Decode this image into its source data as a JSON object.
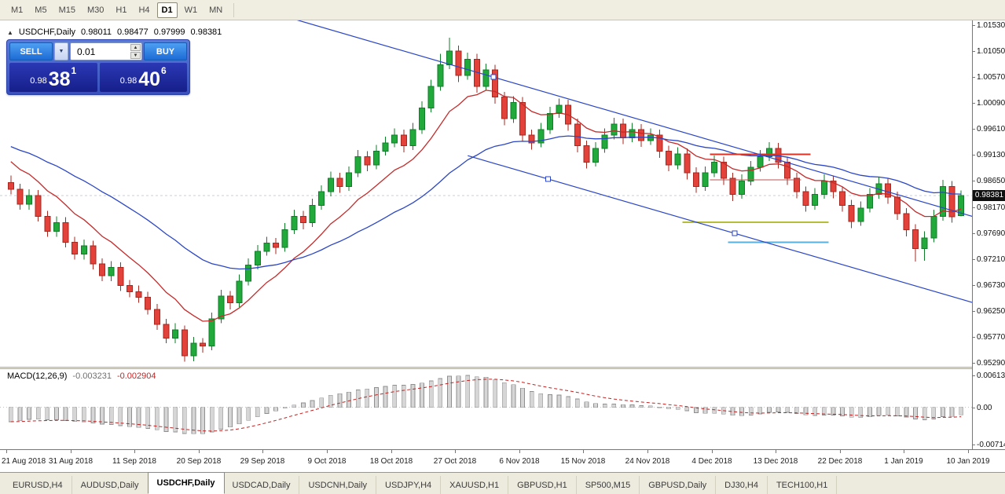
{
  "toolbar": {
    "timeframes": [
      "M1",
      "M5",
      "M15",
      "M30",
      "H1",
      "H4",
      "D1",
      "W1",
      "MN"
    ],
    "active_timeframe": "D1"
  },
  "chart": {
    "symbol_period": "USDCHF,Daily",
    "open": "0.98011",
    "high": "0.98477",
    "low": "0.97999",
    "close": "0.98381"
  },
  "trade_panel": {
    "sell_label": "SELL",
    "buy_label": "BUY",
    "volume": "0.01",
    "bid_prefix": "0.98",
    "bid_pips": "38",
    "bid_point": "1",
    "ask_prefix": "0.98",
    "ask_pips": "40",
    "ask_point": "6"
  },
  "price_axis": {
    "current": "0.98381"
  },
  "macd_panel": {
    "label": "MACD(12,26,9)",
    "value_main": "-0.003231",
    "value_signal": "-0.002904"
  },
  "tabs": {
    "items": [
      "EURUSD,H4",
      "AUDUSD,Daily",
      "USDCHF,Daily",
      "USDCAD,Daily",
      "USDCNH,Daily",
      "USDJPY,H4",
      "XAUUSD,H1",
      "GBPUSD,H1",
      "SP500,M15",
      "GBPUSD,Daily",
      "DJ30,H4",
      "TECH100,H1"
    ],
    "active": "USDCHF,Daily"
  },
  "chart_data": {
    "type": "candlestick",
    "title": "USDCHF,Daily",
    "price_top": 1.0153,
    "price_bottom": 0.9529,
    "price_axis_ticks": [
      "1.01530",
      "1.01050",
      "1.00570",
      "1.00090",
      "0.99610",
      "0.99130",
      "0.98650",
      "0.98170",
      "0.97690",
      "0.97210",
      "0.96730",
      "0.96250",
      "0.95770",
      "0.95290"
    ],
    "current_price": 0.98381,
    "date_ticks": [
      "21 Aug 2018",
      "31 Aug 2018",
      "11 Sep 2018",
      "20 Sep 2018",
      "29 Sep 2018",
      "9 Oct 2018",
      "18 Oct 2018",
      "27 Oct 2018",
      "6 Nov 2018",
      "15 Nov 2018",
      "24 Nov 2018",
      "4 Dec 2018",
      "13 Dec 2018",
      "22 Dec 2018",
      "1 Jan 2019",
      "10 Jan 2019"
    ],
    "ohlc": [
      [
        0.9862,
        0.9875,
        0.984,
        0.985
      ],
      [
        0.985,
        0.986,
        0.9812,
        0.9822
      ],
      [
        0.9822,
        0.985,
        0.9812,
        0.9838
      ],
      [
        0.9838,
        0.9848,
        0.979,
        0.98
      ],
      [
        0.98,
        0.981,
        0.9762,
        0.9772
      ],
      [
        0.9772,
        0.98,
        0.9762,
        0.9788
      ],
      [
        0.9788,
        0.9798,
        0.9742,
        0.9752
      ],
      [
        0.9752,
        0.9762,
        0.972,
        0.973
      ],
      [
        0.973,
        0.9757,
        0.972,
        0.9745
      ],
      [
        0.9745,
        0.9755,
        0.9702,
        0.9712
      ],
      [
        0.9712,
        0.9722,
        0.968,
        0.969
      ],
      [
        0.969,
        0.9717,
        0.968,
        0.9705
      ],
      [
        0.9705,
        0.9715,
        0.9662,
        0.9672
      ],
      [
        0.9672,
        0.9682,
        0.965,
        0.966
      ],
      [
        0.966,
        0.9672,
        0.964,
        0.965
      ],
      [
        0.965,
        0.966,
        0.9618,
        0.9628
      ],
      [
        0.9628,
        0.9638,
        0.959,
        0.96
      ],
      [
        0.96,
        0.961,
        0.9565,
        0.9575
      ],
      [
        0.9575,
        0.9602,
        0.9565,
        0.959
      ],
      [
        0.959,
        0.9598,
        0.9531,
        0.9542
      ],
      [
        0.9542,
        0.9577,
        0.9532,
        0.9565
      ],
      [
        0.9565,
        0.9575,
        0.9548,
        0.956
      ],
      [
        0.956,
        0.9622,
        0.9552,
        0.961
      ],
      [
        0.961,
        0.9664,
        0.9602,
        0.9652
      ],
      [
        0.9652,
        0.9662,
        0.9628,
        0.964
      ],
      [
        0.964,
        0.9692,
        0.9632,
        0.968
      ],
      [
        0.968,
        0.9722,
        0.9672,
        0.971
      ],
      [
        0.971,
        0.9747,
        0.9702,
        0.9735
      ],
      [
        0.9735,
        0.9762,
        0.9727,
        0.975
      ],
      [
        0.975,
        0.976,
        0.973,
        0.9742
      ],
      [
        0.9742,
        0.9787,
        0.9734,
        0.9775
      ],
      [
        0.9775,
        0.9812,
        0.9767,
        0.98
      ],
      [
        0.98,
        0.981,
        0.9776,
        0.9788
      ],
      [
        0.9788,
        0.9832,
        0.978,
        0.982
      ],
      [
        0.982,
        0.9857,
        0.9812,
        0.9845
      ],
      [
        0.9845,
        0.9882,
        0.9837,
        0.987
      ],
      [
        0.987,
        0.988,
        0.9843,
        0.9855
      ],
      [
        0.9855,
        0.9892,
        0.9847,
        0.988
      ],
      [
        0.988,
        0.9922,
        0.9872,
        0.991
      ],
      [
        0.991,
        0.992,
        0.9883,
        0.9895
      ],
      [
        0.9895,
        0.9932,
        0.9887,
        0.992
      ],
      [
        0.992,
        0.9947,
        0.9912,
        0.9935
      ],
      [
        0.9935,
        0.9962,
        0.9927,
        0.995
      ],
      [
        0.995,
        0.996,
        0.9918,
        0.993
      ],
      [
        0.993,
        0.9972,
        0.9922,
        0.996
      ],
      [
        0.996,
        1.0012,
        0.9952,
        1.0
      ],
      [
        1.0,
        1.0052,
        0.9992,
        1.004
      ],
      [
        1.004,
        1.01,
        1.0032,
        1.008
      ],
      [
        1.008,
        1.013,
        1.0072,
        1.0105
      ],
      [
        1.0105,
        1.0115,
        1.0048,
        1.006
      ],
      [
        1.006,
        1.0102,
        1.0052,
        1.009
      ],
      [
        1.009,
        1.01,
        1.0028,
        1.004
      ],
      [
        1.004,
        1.0082,
        1.0032,
        1.007
      ],
      [
        1.007,
        1.008,
        1.0008,
        1.002
      ],
      [
        1.002,
        1.003,
        0.9968,
        0.998
      ],
      [
        0.998,
        1.0022,
        0.9972,
        1.001
      ],
      [
        1.001,
        1.002,
        0.9938,
        0.995
      ],
      [
        0.995,
        0.996,
        0.9923,
        0.9935
      ],
      [
        0.9935,
        0.9972,
        0.9927,
        0.996
      ],
      [
        0.996,
        1.0002,
        0.9952,
        0.999
      ],
      [
        0.999,
        1.0017,
        0.9982,
        1.0005
      ],
      [
        1.0005,
        1.0015,
        0.9958,
        0.997
      ],
      [
        0.997,
        0.998,
        0.9918,
        0.993
      ],
      [
        0.993,
        0.994,
        0.9888,
        0.99
      ],
      [
        0.99,
        0.9937,
        0.9892,
        0.9925
      ],
      [
        0.9925,
        0.9962,
        0.9917,
        0.995
      ],
      [
        0.995,
        0.9982,
        0.9942,
        0.997
      ],
      [
        0.997,
        0.998,
        0.9933,
        0.9945
      ],
      [
        0.9945,
        0.9972,
        0.9937,
        0.996
      ],
      [
        0.996,
        0.997,
        0.9928,
        0.994
      ],
      [
        0.994,
        0.9962,
        0.9932,
        0.995
      ],
      [
        0.995,
        0.996,
        0.9908,
        0.992
      ],
      [
        0.992,
        0.993,
        0.9883,
        0.9895
      ],
      [
        0.9895,
        0.9927,
        0.9887,
        0.9915
      ],
      [
        0.9915,
        0.9925,
        0.9868,
        0.988
      ],
      [
        0.988,
        0.989,
        0.9843,
        0.9855
      ],
      [
        0.9855,
        0.9892,
        0.9847,
        0.988
      ],
      [
        0.988,
        0.9912,
        0.9872,
        0.99
      ],
      [
        0.99,
        0.991,
        0.9858,
        0.987
      ],
      [
        0.987,
        0.988,
        0.9828,
        0.984
      ],
      [
        0.984,
        0.9877,
        0.9832,
        0.9865
      ],
      [
        0.9865,
        0.9902,
        0.9857,
        0.989
      ],
      [
        0.989,
        0.9922,
        0.9882,
        0.991
      ],
      [
        0.991,
        0.9937,
        0.9902,
        0.9925
      ],
      [
        0.9925,
        0.9935,
        0.9888,
        0.99
      ],
      [
        0.99,
        0.991,
        0.9858,
        0.987
      ],
      [
        0.987,
        0.988,
        0.9833,
        0.9845
      ],
      [
        0.9845,
        0.9855,
        0.9808,
        0.982
      ],
      [
        0.982,
        0.9852,
        0.9812,
        0.984
      ],
      [
        0.984,
        0.9877,
        0.9832,
        0.9865
      ],
      [
        0.9865,
        0.9875,
        0.9833,
        0.9845
      ],
      [
        0.9845,
        0.9855,
        0.9808,
        0.982
      ],
      [
        0.982,
        0.983,
        0.9778,
        0.979
      ],
      [
        0.979,
        0.9827,
        0.9782,
        0.9815
      ],
      [
        0.9815,
        0.9852,
        0.9807,
        0.984
      ],
      [
        0.984,
        0.9872,
        0.9832,
        0.986
      ],
      [
        0.986,
        0.987,
        0.9823,
        0.9835
      ],
      [
        0.9835,
        0.9845,
        0.9793,
        0.9805
      ],
      [
        0.9805,
        0.9815,
        0.9763,
        0.9775
      ],
      [
        0.9775,
        0.9785,
        0.9716,
        0.974
      ],
      [
        0.974,
        0.9772,
        0.9718,
        0.976
      ],
      [
        0.976,
        0.9812,
        0.9752,
        0.98
      ],
      [
        0.98,
        0.9867,
        0.9792,
        0.9855
      ],
      [
        0.9855,
        0.9865,
        0.9788,
        0.9799
      ],
      [
        0.98011,
        0.98477,
        0.97999,
        0.98381
      ]
    ],
    "moving_averages": [
      {
        "name": "fast-ma",
        "type": "ema",
        "period": 10,
        "seed": 0.9912,
        "color": "#c42b2b"
      },
      {
        "name": "slow-ma",
        "type": "ema",
        "period": 30,
        "seed": 0.9934,
        "color": "#2b46c4"
      }
    ],
    "trendlines": [
      {
        "i1": 28,
        "p1": 1.01788,
        "i2": 107,
        "p2": 0.97909,
        "color": "#2b46c4"
      },
      {
        "i1": 50,
        "p1": 0.99118,
        "i2": 107,
        "p2": 0.96319,
        "color": "#2b46c4"
      }
    ],
    "trend_handles": [
      {
        "i": 52.8,
        "p": 1.0057
      },
      {
        "i": 58.8,
        "p": 0.98686
      },
      {
        "i": 79.2,
        "p": 0.97684
      }
    ],
    "hlines": [
      {
        "p": 0.9914,
        "i1": 77,
        "i2": 88,
        "color": "#e03224",
        "w": 2
      },
      {
        "p": 0.9867,
        "i1": 77,
        "i2": 87,
        "color": "#c0504d",
        "w": 1
      },
      {
        "p": 0.9789,
        "i1": 74,
        "i2": 90,
        "color": "#b8bd38",
        "w": 2
      },
      {
        "p": 0.9752,
        "i1": 79,
        "i2": 90,
        "color": "#58b0dc",
        "w": 2
      }
    ],
    "macd": {
      "fast": 12,
      "slow": 26,
      "signal": 9,
      "seed_fast": 0.982,
      "seed_slow": 0.9865,
      "axis_max": 0.006137,
      "axis_min": -0.007142,
      "axis_labels": [
        "0.006137",
        "0.00",
        "-0.007142"
      ],
      "axis_values": [
        0.006137,
        0,
        -0.007142
      ],
      "hist_fill": "#d6d6d6",
      "hist_stroke": "#8f8f8f",
      "signal_color": "#c42222"
    },
    "colors": {
      "up_fill": "#22a93c",
      "up_stroke": "#0f7d27",
      "down_fill": "#e2423a",
      "down_stroke": "#a8271f",
      "bid_line": "#c9ced4",
      "trend": "#2b46c4"
    }
  }
}
